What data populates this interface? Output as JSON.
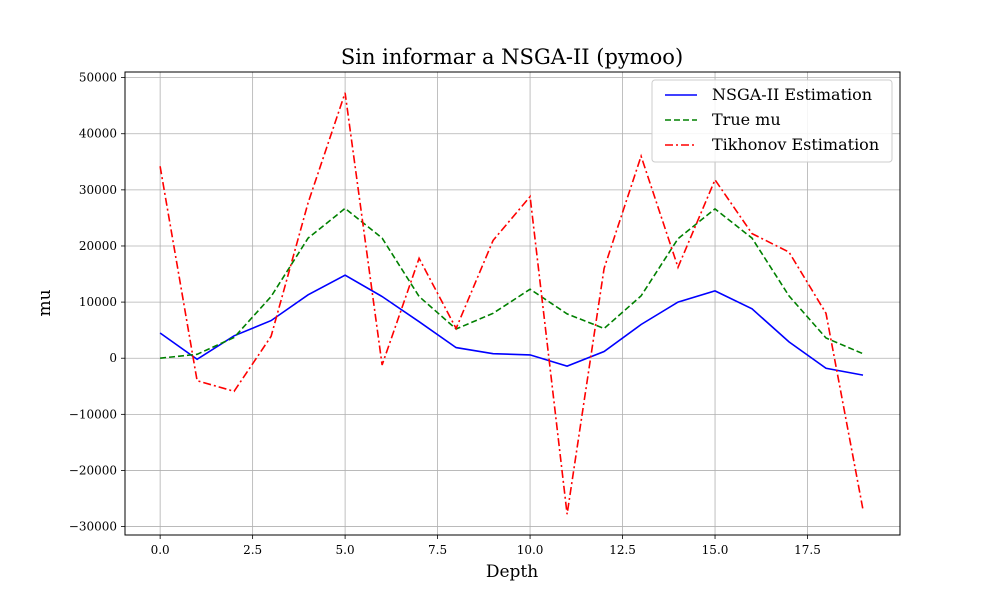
{
  "chart_data": {
    "type": "line",
    "title": "Sin informar a NSGA-II (pymoo)",
    "xlabel": "Depth",
    "ylabel": "mu",
    "xlim": [
      -0.95,
      20.0
    ],
    "ylim": [
      -31500,
      51000
    ],
    "xticks": [
      0.0,
      2.5,
      5.0,
      7.5,
      10.0,
      12.5,
      15.0,
      17.5
    ],
    "xtick_labels": [
      "0.0",
      "2.5",
      "5.0",
      "7.5",
      "10.0",
      "12.5",
      "15.0",
      "17.5"
    ],
    "yticks": [
      -30000,
      -20000,
      -10000,
      0,
      10000,
      20000,
      30000,
      40000,
      50000
    ],
    "ytick_labels": [
      "−30000",
      "−20000",
      "−10000",
      "0",
      "10000",
      "20000",
      "30000",
      "40000",
      "50000"
    ],
    "grid": true,
    "legend_position": "top-right",
    "x": [
      0,
      1,
      2,
      3,
      4,
      5,
      6,
      7,
      8,
      9,
      10,
      11,
      12,
      13,
      14,
      15,
      16,
      17,
      18,
      19
    ],
    "series": [
      {
        "name": "NSGA-II Estimation",
        "color": "#0000ff",
        "dash": "solid",
        "values": [
          4500,
          -200,
          4000,
          6700,
          11300,
          14800,
          11000,
          6500,
          1900,
          800,
          600,
          -1400,
          1200,
          6000,
          10000,
          12000,
          8800,
          2900,
          -1800,
          -3000
        ]
      },
      {
        "name": "True mu",
        "color": "#008000",
        "dash": "dashed",
        "values": [
          0,
          700,
          3700,
          11000,
          21400,
          26700,
          21400,
          11000,
          5200,
          8000,
          12300,
          7900,
          5300,
          11100,
          21300,
          26600,
          21400,
          11100,
          3600,
          800
        ]
      },
      {
        "name": "Tikhonov Estimation",
        "color": "#ff0000",
        "dash": "dashdot",
        "values": [
          34200,
          -4000,
          -5900,
          3900,
          27700,
          47300,
          -1200,
          17800,
          5300,
          21000,
          28800,
          -27800,
          16000,
          36000,
          16200,
          31800,
          22200,
          18900,
          8000,
          -27000
        ]
      }
    ]
  }
}
